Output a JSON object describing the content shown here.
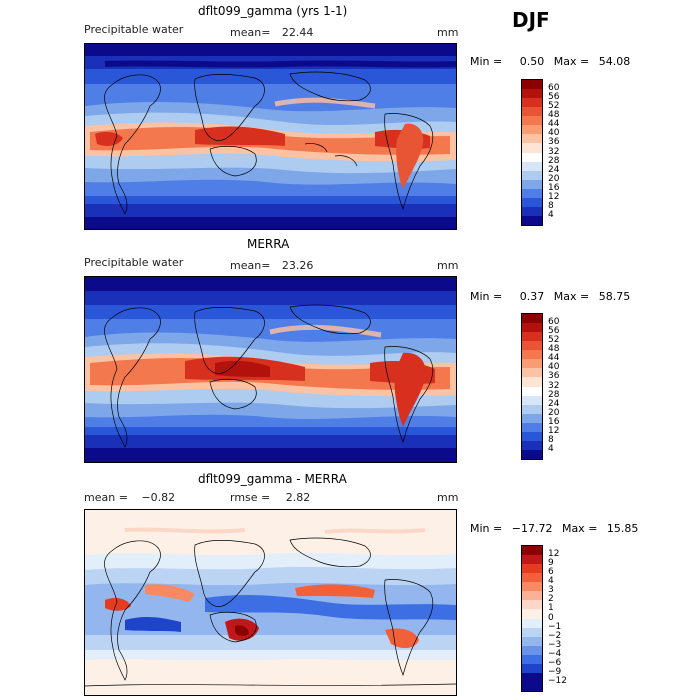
{
  "season": "DJF",
  "panels": [
    {
      "title": "dflt099_gamma (yrs 1-1)",
      "left_label": "Precipitable water",
      "mean_label": "mean=",
      "mean_value": "22.44",
      "units": "mm",
      "min_label": "Min =",
      "min_value": "0.50",
      "max_label": "Max =",
      "max_value": "54.08",
      "colorbar_labels": [
        "60",
        "56",
        "52",
        "48",
        "44",
        "40",
        "36",
        "32",
        "28",
        "24",
        "20",
        "16",
        "12",
        "8",
        "4"
      ]
    },
    {
      "title": "MERRA",
      "left_label": "Precipitable water",
      "mean_label": "mean=",
      "mean_value": "23.26",
      "units": "mm",
      "min_label": "Min =",
      "min_value": "0.37",
      "max_label": "Max =",
      "max_value": "58.75",
      "colorbar_labels": [
        "60",
        "56",
        "52",
        "48",
        "44",
        "40",
        "36",
        "32",
        "28",
        "24",
        "20",
        "16",
        "12",
        "8",
        "4"
      ]
    },
    {
      "title": "dflt099_gamma - MERRA",
      "left_label": "mean =",
      "mean_label": "",
      "mean_value": "−0.82",
      "rmse_label": "rmse =",
      "rmse_value": "2.82",
      "units": "mm",
      "min_label": "Min =",
      "min_value": "−17.72",
      "max_label": "Max =",
      "max_value": "15.85",
      "colorbar_labels": [
        "12",
        "9",
        "6",
        "4",
        "3",
        "2",
        "1",
        "0",
        "−1",
        "−2",
        "−3",
        "−4",
        "−6",
        "−9",
        "−12"
      ]
    }
  ],
  "colors": {
    "abs_scale": [
      "#8b0000",
      "#b2110c",
      "#d7301f",
      "#e85534",
      "#f4784e",
      "#f89c74",
      "#fbc2a4",
      "#fde5d5",
      "#ffffff",
      "#d6e5f7",
      "#aecbf0",
      "#7ea7ea",
      "#4f7ee6",
      "#2a56d8",
      "#1a30b8",
      "#0a0a8a"
    ],
    "diff_scale": [
      "#8b0000",
      "#c0181a",
      "#e53b1f",
      "#f26039",
      "#f78a63",
      "#fab196",
      "#fcd6c6",
      "#fdf0e6",
      "#e3eefb",
      "#bcd4f4",
      "#94b6ee",
      "#6893e9",
      "#3e6ee3",
      "#1f44cc",
      "#0a0a8a"
    ]
  }
}
